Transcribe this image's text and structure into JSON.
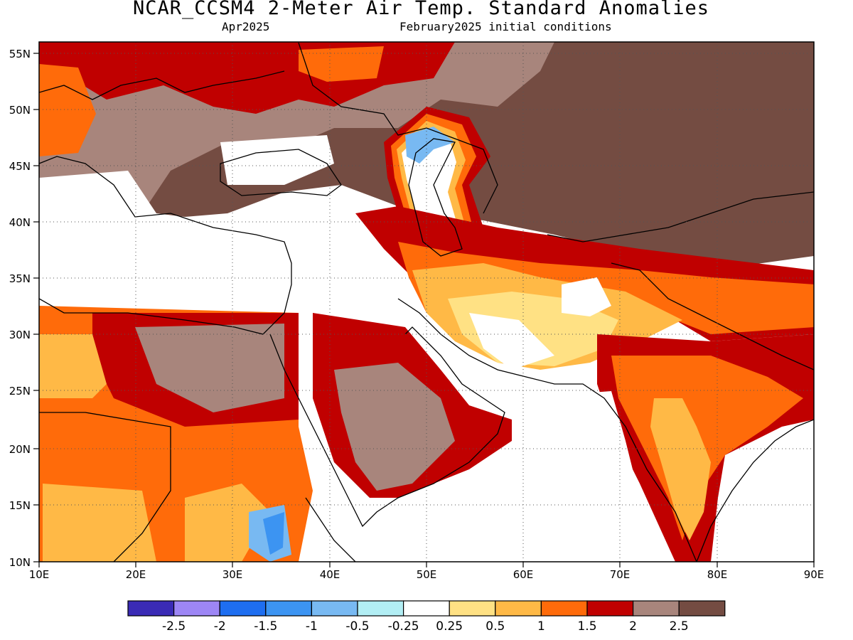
{
  "header": {
    "title": "NCAR_CCSM4 2-Meter Air Temp. Standard Anomalies",
    "valid_month": "Apr2025",
    "init_conditions": "February2025 initial conditions"
  },
  "axes": {
    "lon_labels": [
      "10E",
      "20E",
      "30E",
      "40E",
      "50E",
      "60E",
      "70E",
      "80E",
      "90E"
    ],
    "lat_labels": [
      "55N",
      "50N",
      "45N",
      "40N",
      "35N",
      "30N",
      "25N",
      "20N",
      "15N",
      "10N"
    ],
    "lon_range": [
      10,
      90
    ],
    "lat_range": [
      10,
      56.3
    ],
    "grid": "dotted"
  },
  "colorbar": {
    "colors": [
      "#3a2bb5",
      "#9d86f5",
      "#1e6ef0",
      "#3c94f2",
      "#78b9f2",
      "#b2eef4",
      "#ffffff",
      "#ffe184",
      "#ffb946",
      "#ff6b0a",
      "#c00000",
      "#a8857c",
      "#744c42"
    ],
    "labels": [
      "-2.5",
      "-2",
      "-1.5",
      "-1",
      "-0.5",
      "-0.25",
      "0.25",
      "0.5",
      "1",
      "1.5",
      "2",
      "2.5"
    ]
  }
}
